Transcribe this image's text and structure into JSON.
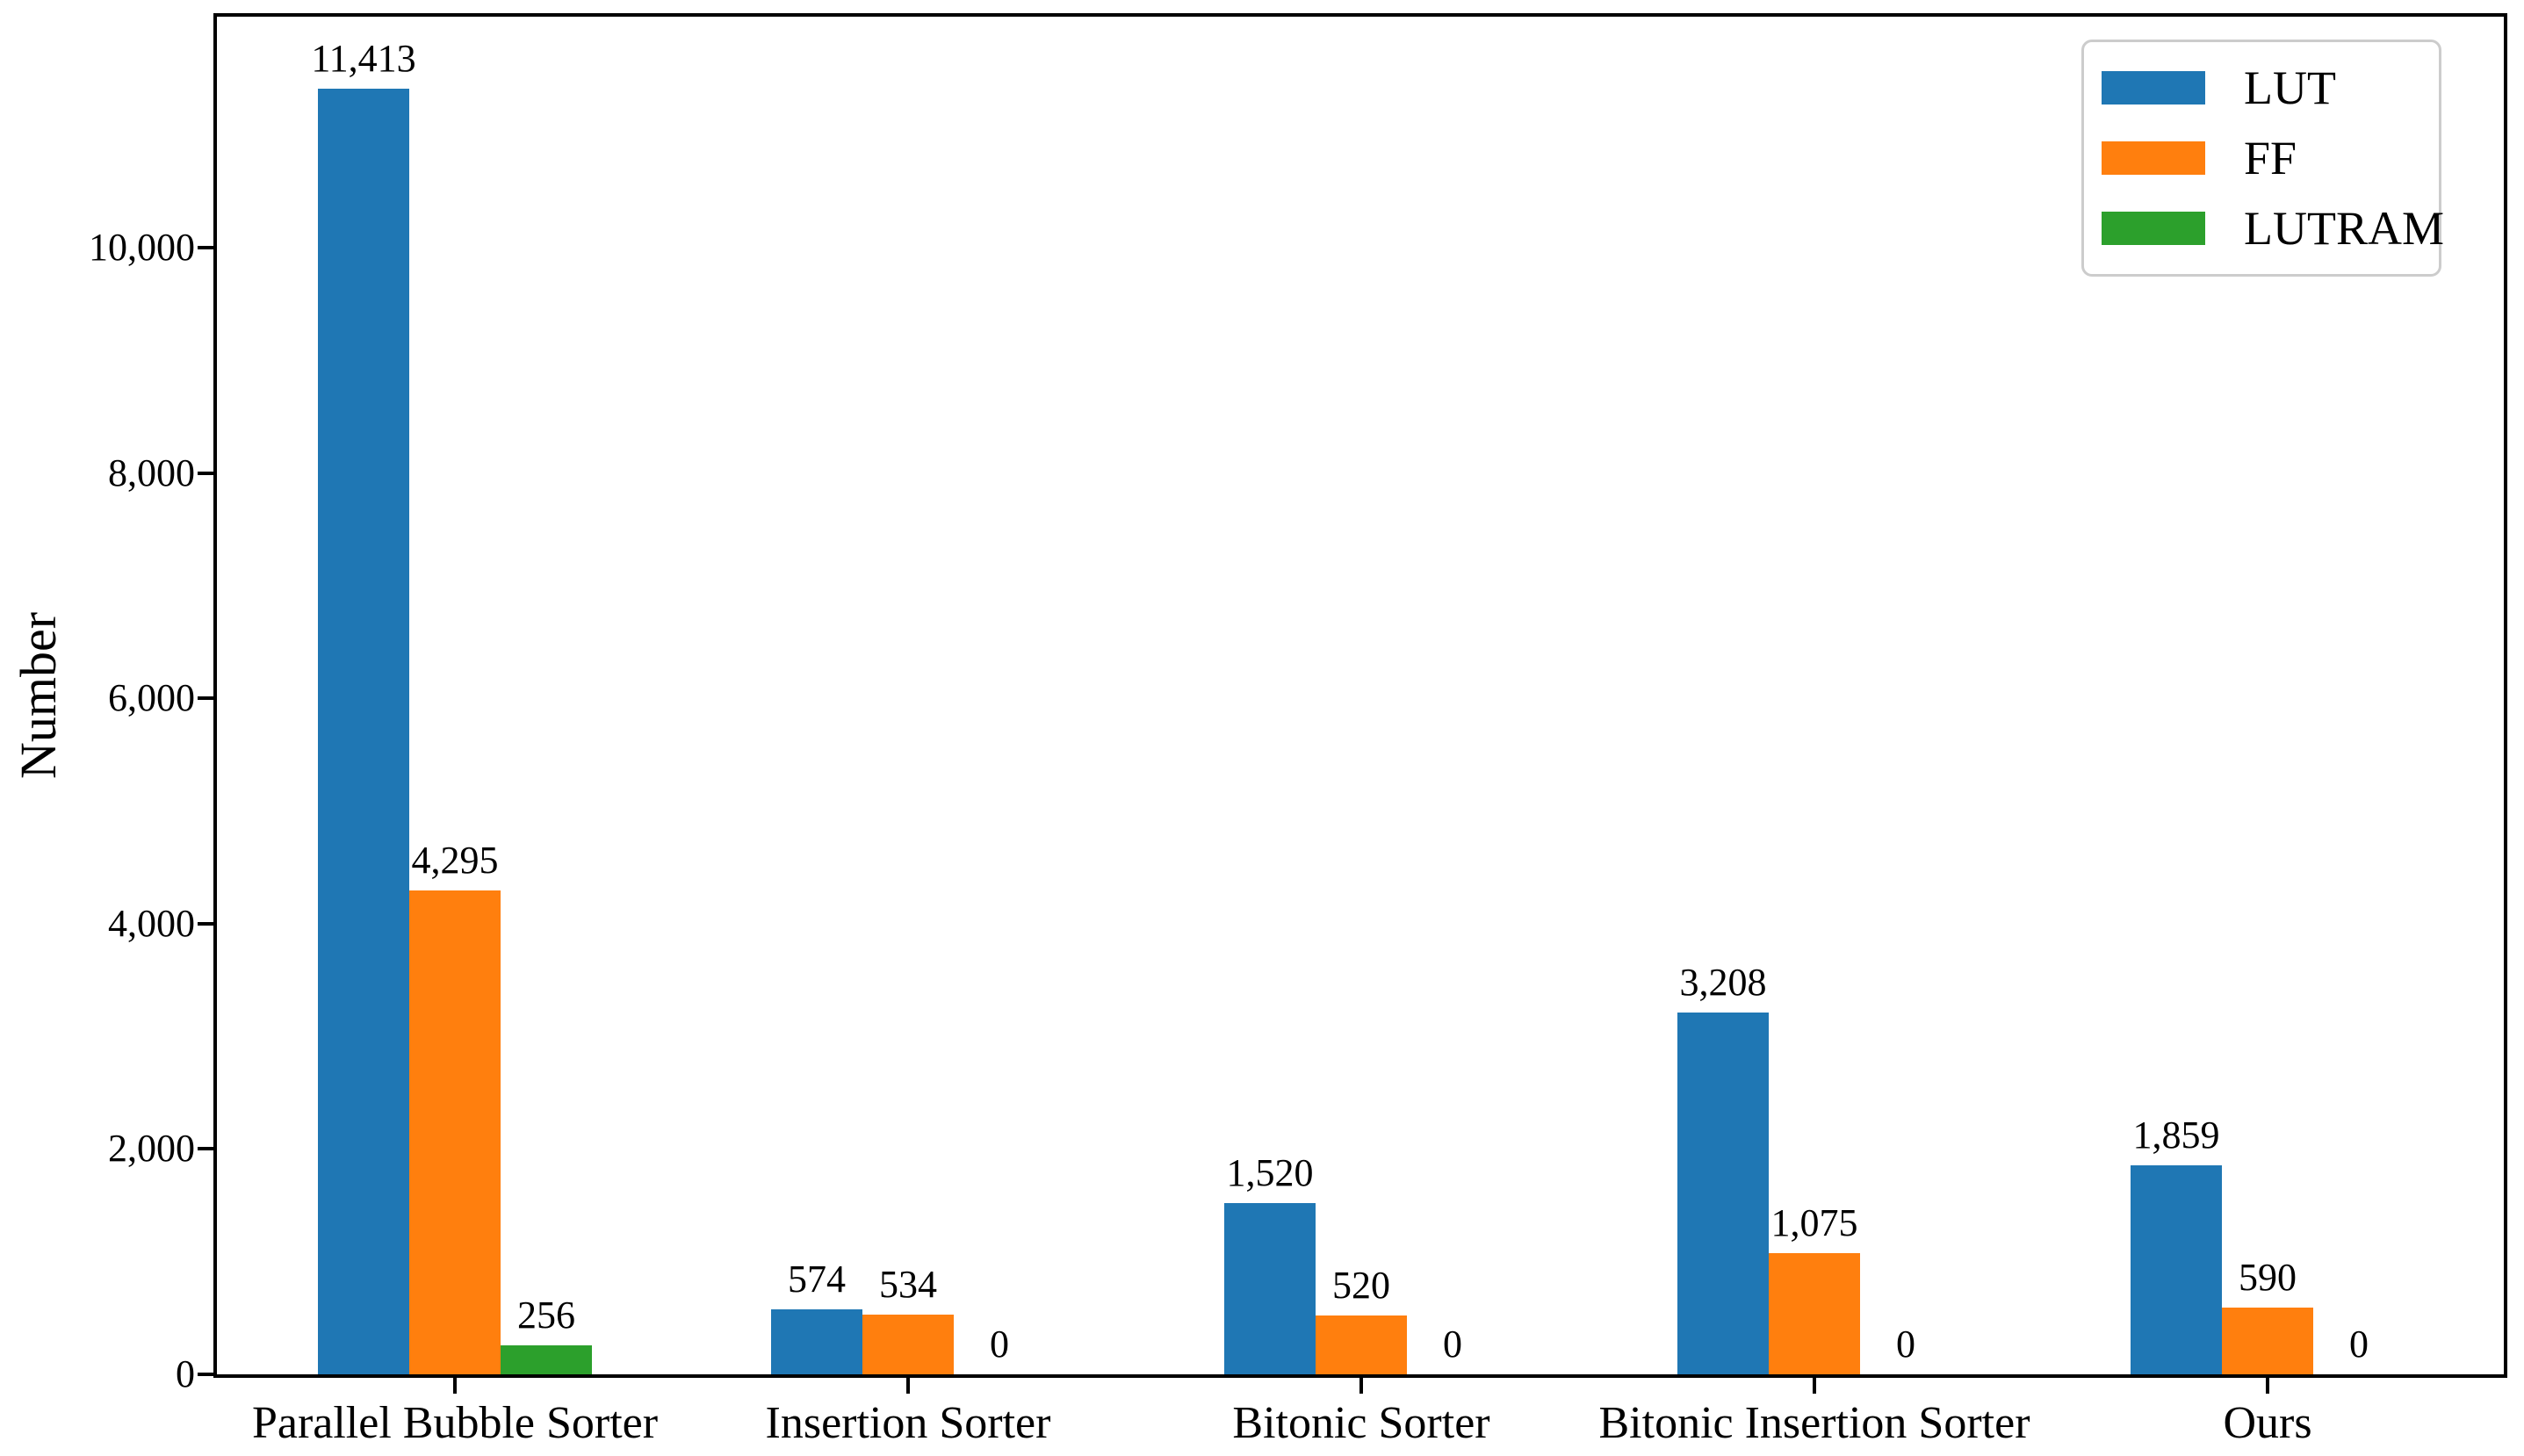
{
  "chart_data": {
    "type": "bar",
    "title": "",
    "xlabel": "",
    "ylabel": "Number",
    "categories": [
      "Parallel Bubble Sorter",
      "Insertion Sorter",
      "Bitonic Sorter",
      "Bitonic Insertion Sorter",
      "Ours"
    ],
    "series": [
      {
        "name": "LUT",
        "color": "#1f77b4",
        "values": [
          11413,
          574,
          1520,
          3208,
          1859
        ],
        "value_labels": [
          "11,413",
          "574",
          "1,520",
          "3,208",
          "1,859"
        ]
      },
      {
        "name": "FF",
        "color": "#ff7f0e",
        "values": [
          4295,
          534,
          520,
          1075,
          590
        ],
        "value_labels": [
          "4,295",
          "534",
          "520",
          "1,075",
          "590"
        ]
      },
      {
        "name": "LUTRAM",
        "color": "#2ca02c",
        "values": [
          256,
          0,
          0,
          0,
          0
        ],
        "value_labels": [
          "256",
          "0",
          "0",
          "0",
          "0"
        ]
      }
    ],
    "ylim": [
      0,
      12050
    ],
    "yticks": {
      "values": [
        0,
        2000,
        4000,
        6000,
        8000,
        10000
      ],
      "labels": [
        "0",
        "2,000",
        "4,000",
        "6,000",
        "8,000",
        "10,000"
      ]
    },
    "grid": false,
    "bar_value_labels": true,
    "legend": {
      "position": "upper-right",
      "entries": [
        {
          "label": "LUT",
          "color": "#1f77b4"
        },
        {
          "label": "FF",
          "color": "#ff7f0e"
        },
        {
          "label": "LUTRAM",
          "color": "#2ca02c"
        }
      ]
    },
    "axis_color": "#000000",
    "background_color": "#ffffff"
  }
}
